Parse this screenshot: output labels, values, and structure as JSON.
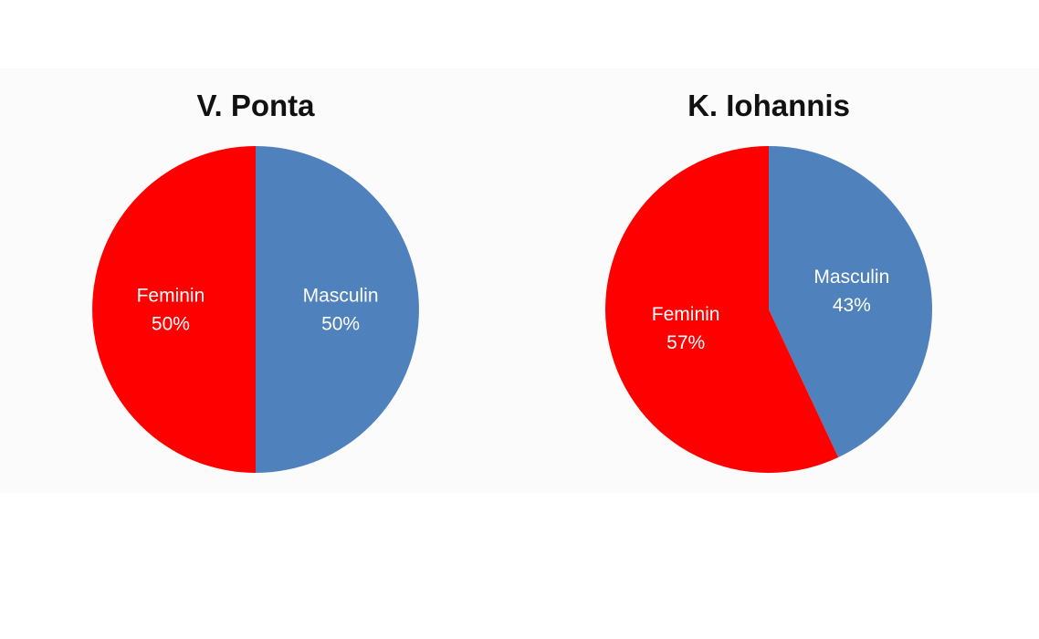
{
  "chart_data": [
    {
      "type": "pie",
      "title": "V. Ponta",
      "slices": [
        {
          "label": "Masculin",
          "percent_text": "50%",
          "value": 50,
          "color": "#4F81BD"
        },
        {
          "label": "Feminin",
          "percent_text": "50%",
          "value": 50,
          "color": "#FF0000"
        }
      ]
    },
    {
      "type": "pie",
      "title": "K. Iohannis",
      "slices": [
        {
          "label": "Masculin",
          "percent_text": "43%",
          "value": 43,
          "color": "#4F81BD"
        },
        {
          "label": "Feminin",
          "percent_text": "57%",
          "value": 57,
          "color": "#FF0000"
        }
      ]
    }
  ]
}
